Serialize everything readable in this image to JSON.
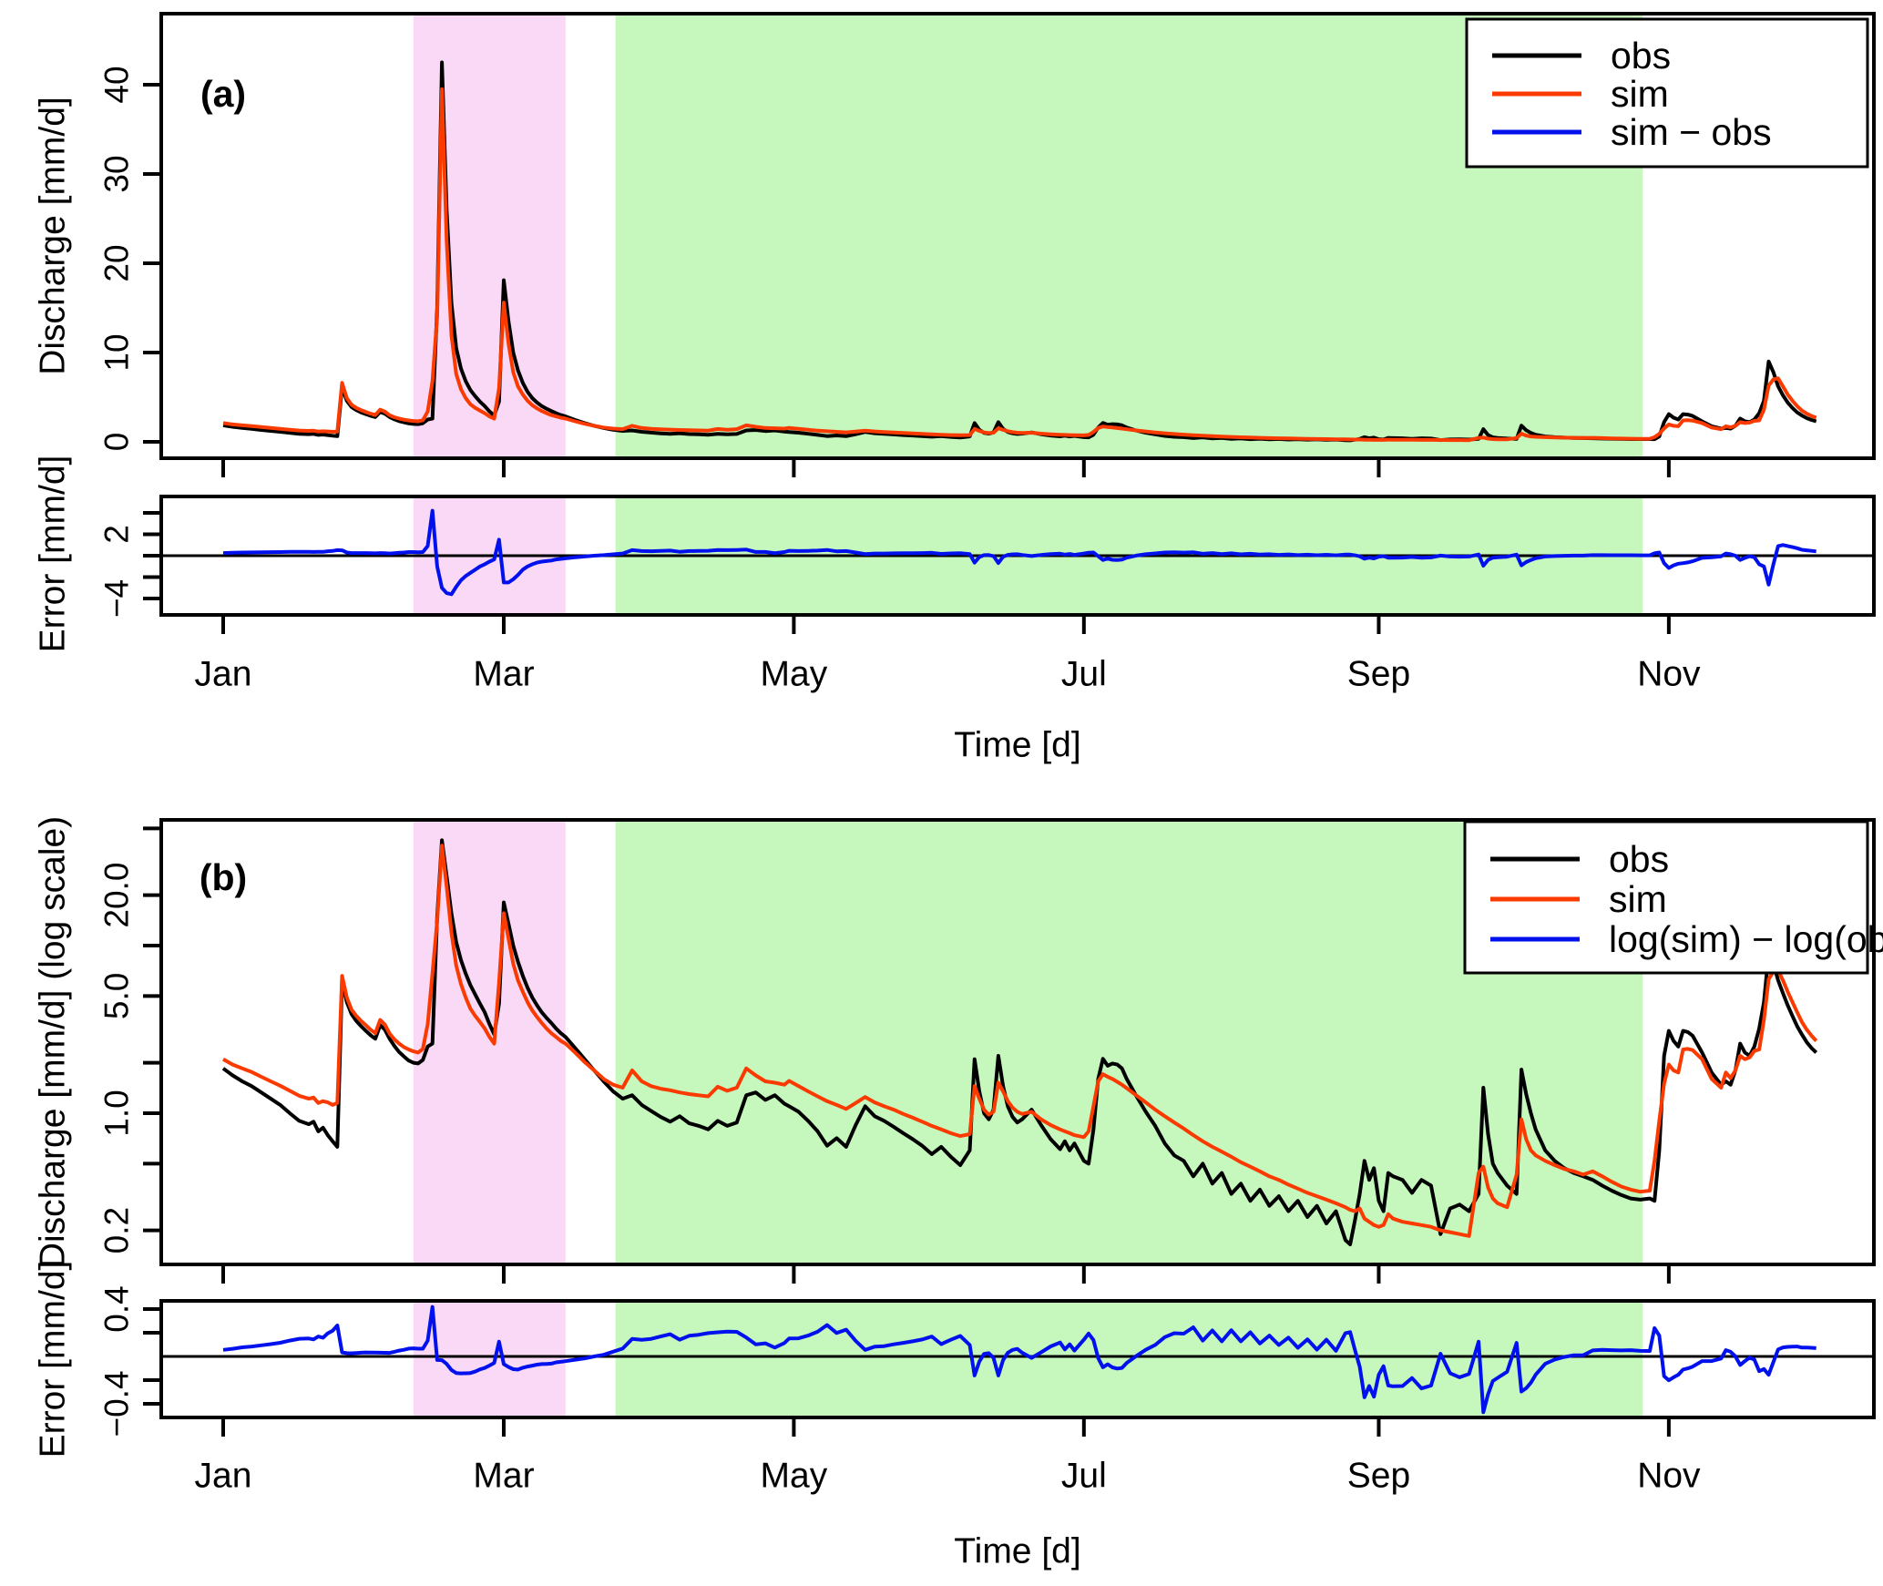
{
  "panel_a": {
    "label": "(a)",
    "ylabel": "Discharge [mm/d]",
    "yticks": [
      {
        "v": 0,
        "t": "0"
      },
      {
        "v": 10,
        "t": "10"
      },
      {
        "v": 20,
        "t": "20"
      },
      {
        "v": 30,
        "t": "30"
      },
      {
        "v": 40,
        "t": "40"
      }
    ],
    "error": {
      "ylabel": "Error [mm/d]",
      "yticks": [
        {
          "v": 4,
          "t": ""
        },
        {
          "v": 2,
          "t": "2"
        },
        {
          "v": 0,
          "t": ""
        },
        {
          "v": -2,
          "t": ""
        },
        {
          "v": -4,
          "t": "−4"
        }
      ]
    },
    "legend": [
      {
        "label": "obs",
        "color": "#000000"
      },
      {
        "label": "sim",
        "color": "#FB3A00"
      },
      {
        "label": "sim − obs",
        "color": "#0011EE"
      }
    ]
  },
  "panel_b": {
    "label": "(b)",
    "ylabel": "Discharge [mm/d] (log scale)",
    "yticks": [
      {
        "v": 50,
        "t": ""
      },
      {
        "v": 20,
        "t": "20.0"
      },
      {
        "v": 10,
        "t": ""
      },
      {
        "v": 5,
        "t": "5.0"
      },
      {
        "v": 2,
        "t": ""
      },
      {
        "v": 1,
        "t": "1.0"
      },
      {
        "v": 0.5,
        "t": ""
      },
      {
        "v": 0.2,
        "t": "0.2"
      }
    ],
    "error": {
      "ylabel": "Error [mm/d]",
      "yticks": [
        {
          "v": 0.4,
          "t": "0.4"
        },
        {
          "v": 0.2,
          "t": ""
        },
        {
          "v": -0.2,
          "t": ""
        },
        {
          "v": -0.4,
          "t": "−0.4"
        }
      ]
    },
    "legend": [
      {
        "label": "obs",
        "color": "#000000"
      },
      {
        "label": "sim",
        "color": "#FB3A00"
      },
      {
        "label": "log(sim) − log(obs)",
        "color": "#0011EE"
      }
    ]
  },
  "xaxis": {
    "label": "Time [d]",
    "ticks": [
      {
        "day": 0,
        "label": "Jan"
      },
      {
        "day": 59,
        "label": "Mar"
      },
      {
        "day": 120,
        "label": "May"
      },
      {
        "day": 181,
        "label": "Jul"
      },
      {
        "day": 243,
        "label": "Sep"
      },
      {
        "day": 304,
        "label": "Nov"
      }
    ]
  },
  "bands": [
    {
      "name": "pink-band",
      "color": "#F9D9F5",
      "from_day": 40,
      "to_day": 72
    },
    {
      "name": "green-band",
      "color": "#C6F8BE",
      "from_day": 82.5,
      "to_day": 298.5
    }
  ],
  "colors": {
    "obs": "#000000",
    "sim": "#FB3A00",
    "error": "#0011EE",
    "frame": "#000000"
  },
  "chart_data": {
    "type": "line",
    "title": "",
    "x_unit": "day of year (daily discharge time series, Jan–mid Dec)",
    "x_tick_days": [
      0,
      59,
      120,
      181,
      243,
      304
    ],
    "x_tick_labels": [
      "Jan",
      "Mar",
      "May",
      "Jul",
      "Sep",
      "Nov"
    ],
    "panels": [
      {
        "id": "a",
        "ylabel": "Discharge [mm/d]",
        "yscale": "linear",
        "ylim": [
          -1.8,
          48
        ],
        "series": [
          "obs",
          "sim"
        ],
        "error_series": "sim − obs",
        "error_ylim": [
          -5.5,
          5.5
        ],
        "error_tick_step": 2,
        "legend_position": "top-right",
        "grid": false
      },
      {
        "id": "b",
        "ylabel": "Discharge [mm/d] (log scale)",
        "yscale": "log",
        "ylim": [
          0.13,
          54
        ],
        "series": [
          "obs",
          "sim"
        ],
        "error_series": "log(sim) − log(obs)",
        "error_ylim": [
          -0.5,
          0.47
        ],
        "error_tick_step": 0.2,
        "legend_position": "top-right",
        "grid": false
      }
    ],
    "highlight_bands_days": {
      "pink": [
        40,
        72
      ],
      "green": [
        82.5,
        298.5
      ]
    },
    "derived": {
      "error_a": "sim - obs",
      "error_b": "log10(sim) - log10(obs)"
    },
    "points_format": [
      "day",
      "obs",
      "sim"
    ],
    "points": [
      [
        0,
        1.85,
        2.1
      ],
      [
        2,
        1.68,
        1.95
      ],
      [
        4,
        1.55,
        1.85
      ],
      [
        6,
        1.45,
        1.76
      ],
      [
        8,
        1.33,
        1.65
      ],
      [
        10,
        1.22,
        1.55
      ],
      [
        12,
        1.12,
        1.46
      ],
      [
        14,
        1.0,
        1.36
      ],
      [
        16,
        0.9,
        1.27
      ],
      [
        18,
        0.86,
        1.22
      ],
      [
        19,
        0.89,
        1.24
      ],
      [
        20,
        0.78,
        1.15
      ],
      [
        21,
        0.82,
        1.18
      ],
      [
        22,
        0.74,
        1.16
      ],
      [
        23,
        0.68,
        1.12
      ],
      [
        24,
        0.63,
        1.15
      ],
      [
        25,
        6.1,
        6.6
      ],
      [
        26,
        4.6,
        4.9
      ],
      [
        27,
        3.9,
        4.15
      ],
      [
        28,
        3.55,
        3.8
      ],
      [
        29,
        3.3,
        3.55
      ],
      [
        30,
        3.1,
        3.35
      ],
      [
        31,
        2.92,
        3.15
      ],
      [
        32,
        2.78,
        3.0
      ],
      [
        33,
        3.35,
        3.6
      ],
      [
        34,
        3.15,
        3.38
      ],
      [
        35,
        2.78,
        2.98
      ],
      [
        36,
        2.52,
        2.76
      ],
      [
        37,
        2.32,
        2.6
      ],
      [
        38,
        2.18,
        2.48
      ],
      [
        39,
        2.06,
        2.4
      ],
      [
        40,
        2.0,
        2.34
      ],
      [
        41,
        1.98,
        2.3
      ],
      [
        42,
        2.08,
        2.42
      ],
      [
        43,
        2.5,
        3.4
      ],
      [
        44,
        2.6,
        6.8
      ],
      [
        45,
        15.0,
        14.0
      ],
      [
        46,
        42.5,
        39.5
      ],
      [
        47,
        26.0,
        22.5
      ],
      [
        48,
        15.5,
        11.9
      ],
      [
        49,
        10.5,
        7.6
      ],
      [
        50,
        8.2,
        5.9
      ],
      [
        51,
        6.8,
        4.9
      ],
      [
        52,
        5.8,
        4.2
      ],
      [
        53,
        5.1,
        3.8
      ],
      [
        54,
        4.5,
        3.5
      ],
      [
        55,
        4.0,
        3.2
      ],
      [
        56,
        3.4,
        2.85
      ],
      [
        57,
        2.95,
        2.6
      ],
      [
        58,
        4.5,
        6.0
      ],
      [
        59,
        18.1,
        15.6
      ],
      [
        60,
        13.5,
        11.0
      ],
      [
        61,
        10.0,
        7.8
      ],
      [
        62,
        8.0,
        6.2
      ],
      [
        63,
        6.6,
        5.3
      ],
      [
        64,
        5.6,
        4.6
      ],
      [
        65,
        4.9,
        4.1
      ],
      [
        66,
        4.4,
        3.75
      ],
      [
        67,
        4.0,
        3.45
      ],
      [
        68,
        3.7,
        3.2
      ],
      [
        69,
        3.45,
        3.0
      ],
      [
        70,
        3.2,
        2.85
      ],
      [
        71,
        3.0,
        2.7
      ],
      [
        72,
        2.85,
        2.6
      ],
      [
        74,
        2.45,
        2.3
      ],
      [
        76,
        2.1,
        2.02
      ],
      [
        78,
        1.8,
        1.8
      ],
      [
        80,
        1.55,
        1.6
      ],
      [
        82,
        1.35,
        1.48
      ],
      [
        84,
        1.22,
        1.42
      ],
      [
        86,
        1.28,
        1.8
      ],
      [
        88,
        1.12,
        1.55
      ],
      [
        90,
        1.03,
        1.45
      ],
      [
        92,
        0.95,
        1.4
      ],
      [
        94,
        0.89,
        1.37
      ],
      [
        96,
        0.96,
        1.33
      ],
      [
        98,
        0.87,
        1.3
      ],
      [
        100,
        0.84,
        1.28
      ],
      [
        102,
        0.8,
        1.26
      ],
      [
        104,
        0.9,
        1.44
      ],
      [
        106,
        0.84,
        1.36
      ],
      [
        108,
        0.88,
        1.42
      ],
      [
        110,
        1.28,
        1.85
      ],
      [
        112,
        1.33,
        1.68
      ],
      [
        114,
        1.2,
        1.55
      ],
      [
        116,
        1.28,
        1.52
      ],
      [
        118,
        1.14,
        1.48
      ],
      [
        119,
        1.1,
        1.56
      ],
      [
        121,
        1.02,
        1.45
      ],
      [
        123,
        0.9,
        1.35
      ],
      [
        125,
        0.78,
        1.26
      ],
      [
        127,
        0.64,
        1.18
      ],
      [
        129,
        0.71,
        1.12
      ],
      [
        131,
        0.63,
        1.06
      ],
      [
        133,
        0.85,
        1.15
      ],
      [
        135,
        1.1,
        1.25
      ],
      [
        137,
        0.96,
        1.16
      ],
      [
        139,
        0.9,
        1.1
      ],
      [
        141,
        0.83,
        1.05
      ],
      [
        143,
        0.76,
        0.99
      ],
      [
        145,
        0.7,
        0.94
      ],
      [
        147,
        0.64,
        0.89
      ],
      [
        149,
        0.57,
        0.84
      ],
      [
        151,
        0.63,
        0.8
      ],
      [
        153,
        0.55,
        0.76
      ],
      [
        155,
        0.49,
        0.73
      ],
      [
        157,
        0.6,
        0.75
      ],
      [
        158,
        2.1,
        1.45
      ],
      [
        159,
        1.35,
        1.22
      ],
      [
        160,
        1.0,
        1.05
      ],
      [
        161,
        0.92,
        0.98
      ],
      [
        162,
        1.05,
        1.02
      ],
      [
        163,
        2.2,
        1.52
      ],
      [
        164,
        1.45,
        1.35
      ],
      [
        165,
        1.1,
        1.18
      ],
      [
        166,
        0.95,
        1.08
      ],
      [
        167,
        0.88,
        1.02
      ],
      [
        168,
        0.92,
        0.99
      ],
      [
        170,
        1.05,
        1.02
      ],
      [
        172,
        0.85,
        0.92
      ],
      [
        174,
        0.7,
        0.85
      ],
      [
        176,
        0.61,
        0.8
      ],
      [
        177,
        0.68,
        0.78
      ],
      [
        178,
        0.6,
        0.76
      ],
      [
        179,
        0.66,
        0.74
      ],
      [
        181,
        0.52,
        0.72
      ],
      [
        182,
        0.5,
        0.78
      ],
      [
        183,
        0.8,
        1.1
      ],
      [
        184,
        1.6,
        1.55
      ],
      [
        185,
        2.11,
        1.71
      ],
      [
        186,
        1.92,
        1.65
      ],
      [
        187,
        1.98,
        1.6
      ],
      [
        188,
        1.95,
        1.54
      ],
      [
        189,
        1.85,
        1.48
      ],
      [
        190,
        1.6,
        1.41
      ],
      [
        192,
        1.27,
        1.28
      ],
      [
        194,
        1.02,
        1.16
      ],
      [
        196,
        0.84,
        1.05
      ],
      [
        198,
        0.66,
        0.96
      ],
      [
        200,
        0.56,
        0.88
      ],
      [
        202,
        0.52,
        0.81
      ],
      [
        204,
        0.42,
        0.74
      ],
      [
        206,
        0.5,
        0.68
      ],
      [
        208,
        0.38,
        0.63
      ],
      [
        210,
        0.44,
        0.59
      ],
      [
        212,
        0.33,
        0.55
      ],
      [
        214,
        0.38,
        0.51
      ],
      [
        216,
        0.3,
        0.48
      ],
      [
        218,
        0.35,
        0.45
      ],
      [
        220,
        0.28,
        0.42
      ],
      [
        222,
        0.32,
        0.4
      ],
      [
        224,
        0.26,
        0.375
      ],
      [
        226,
        0.3,
        0.355
      ],
      [
        228,
        0.24,
        0.335
      ],
      [
        230,
        0.28,
        0.32
      ],
      [
        232,
        0.22,
        0.305
      ],
      [
        234,
        0.26,
        0.29
      ],
      [
        236,
        0.175,
        0.275
      ],
      [
        237,
        0.165,
        0.265
      ],
      [
        238,
        0.23,
        0.26
      ],
      [
        239,
        0.33,
        0.27
      ],
      [
        240,
        0.52,
        0.235
      ],
      [
        241,
        0.4,
        0.225
      ],
      [
        242,
        0.47,
        0.215
      ],
      [
        243,
        0.3,
        0.21
      ],
      [
        244,
        0.26,
        0.215
      ],
      [
        245,
        0.44,
        0.25
      ],
      [
        246,
        0.42,
        0.235
      ],
      [
        248,
        0.4,
        0.225
      ],
      [
        250,
        0.335,
        0.22
      ],
      [
        252,
        0.4,
        0.215
      ],
      [
        254,
        0.37,
        0.21
      ],
      [
        256,
        0.19,
        0.2
      ],
      [
        258,
        0.27,
        0.195
      ],
      [
        260,
        0.285,
        0.19
      ],
      [
        262,
        0.26,
        0.185
      ],
      [
        264,
        0.33,
        0.44
      ],
      [
        265,
        1.42,
        0.48
      ],
      [
        266,
        0.75,
        0.36
      ],
      [
        267,
        0.5,
        0.31
      ],
      [
        268,
        0.44,
        0.29
      ],
      [
        270,
        0.37,
        0.275
      ],
      [
        272,
        0.33,
        0.43
      ],
      [
        273,
        1.82,
        0.92
      ],
      [
        274,
        1.3,
        0.7
      ],
      [
        275,
        1.0,
        0.6
      ],
      [
        276,
        0.8,
        0.56
      ],
      [
        278,
        0.6,
        0.52
      ],
      [
        280,
        0.52,
        0.49
      ],
      [
        282,
        0.47,
        0.465
      ],
      [
        284,
        0.44,
        0.45
      ],
      [
        286,
        0.42,
        0.43
      ],
      [
        288,
        0.4,
        0.45
      ],
      [
        290,
        0.37,
        0.42
      ],
      [
        292,
        0.345,
        0.39
      ],
      [
        294,
        0.325,
        0.365
      ],
      [
        296,
        0.31,
        0.35
      ],
      [
        298,
        0.305,
        0.34
      ],
      [
        300,
        0.31,
        0.345
      ],
      [
        301,
        0.3,
        0.52
      ],
      [
        302,
        0.6,
        0.9
      ],
      [
        303,
        2.2,
        1.5
      ],
      [
        304,
        3.1,
        1.95
      ],
      [
        305,
        2.7,
        1.8
      ],
      [
        306,
        2.5,
        1.75
      ],
      [
        307,
        3.1,
        2.4
      ],
      [
        308,
        3.05,
        2.42
      ],
      [
        309,
        2.9,
        2.38
      ],
      [
        311,
        2.3,
        2.1
      ],
      [
        313,
        1.75,
        1.6
      ],
      [
        315,
        1.48,
        1.42
      ],
      [
        316,
        1.55,
        1.75
      ],
      [
        317,
        1.48,
        1.62
      ],
      [
        318,
        1.8,
        1.8
      ],
      [
        319,
        2.6,
        2.2
      ],
      [
        320,
        2.3,
        2.1
      ],
      [
        321,
        2.2,
        2.15
      ],
      [
        322,
        2.5,
        2.35
      ],
      [
        323,
        3.2,
        2.4
      ],
      [
        324,
        4.6,
        3.6
      ],
      [
        325,
        9.0,
        6.3
      ],
      [
        326,
        7.8,
        7.0
      ],
      [
        327,
        6.2,
        7.1
      ],
      [
        328,
        5.2,
        6.2
      ],
      [
        329,
        4.4,
        5.3
      ],
      [
        330,
        3.8,
        4.6
      ],
      [
        331,
        3.3,
        4.0
      ],
      [
        332,
        2.95,
        3.5
      ],
      [
        333,
        2.65,
        3.15
      ],
      [
        334,
        2.45,
        2.9
      ],
      [
        335,
        2.3,
        2.7
      ]
    ]
  }
}
